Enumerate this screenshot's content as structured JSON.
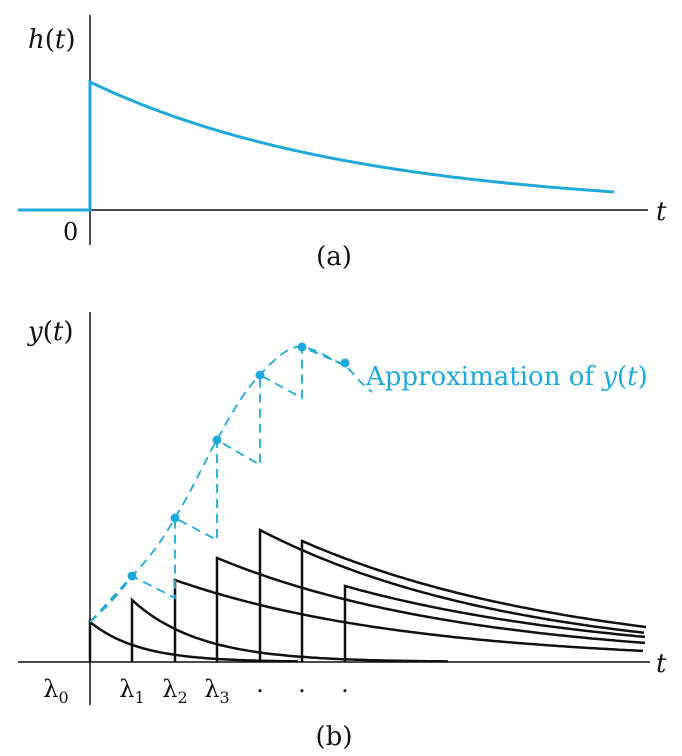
{
  "panel_a": {
    "y_label_fn": "h",
    "y_label_arg": "t",
    "x_label": "t",
    "origin_label": "0",
    "caption": "(a)"
  },
  "panel_b": {
    "y_label_fn": "y",
    "y_label_arg": "t",
    "x_label": "t",
    "caption": "(b)",
    "annotation_prefix": "Approximation of ",
    "annotation_fn": "y",
    "annotation_arg": "t",
    "tick_labels": [
      {
        "base": "λ",
        "sub": "0"
      },
      {
        "base": "λ",
        "sub": "1"
      },
      {
        "base": "λ",
        "sub": "2"
      },
      {
        "base": "λ",
        "sub": "3"
      },
      {
        "base": ".",
        "sub": ""
      },
      {
        "base": ".",
        "sub": ""
      },
      {
        "base": ".",
        "sub": ""
      }
    ]
  },
  "colors": {
    "curve_blue": "#1fa8d8",
    "axis": "#111111",
    "impulse_response": "#111111"
  }
}
